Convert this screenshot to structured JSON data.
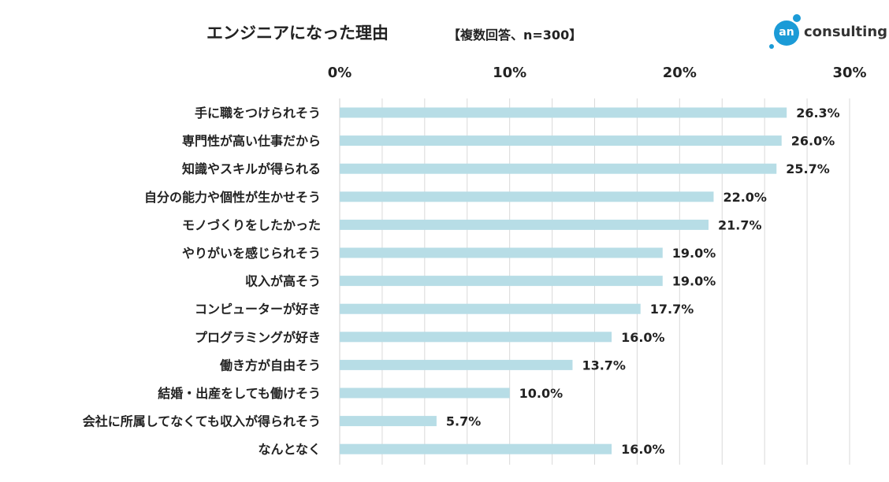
{
  "header": {
    "title": "エンジニアになった理由",
    "subtitle": "【複数回答、n=300】",
    "logo_mark": "an",
    "logo_text": "consulting"
  },
  "colors": {
    "bar": "#b7dde6",
    "grid": "#d9d9d9",
    "text": "#222222",
    "logo": "#1b9bd7"
  },
  "chart_data": {
    "type": "bar",
    "orientation": "horizontal",
    "title": "エンジニアになった理由",
    "subtitle": "【複数回答、n=300】",
    "xlabel": "",
    "ylabel": "",
    "xlim": [
      0,
      30
    ],
    "xticks": [
      0,
      10,
      20,
      30
    ],
    "xtick_labels": [
      "0%",
      "10%",
      "20%",
      "30%"
    ],
    "grid": true,
    "unit": "%",
    "categories": [
      "手に職をつけられそう",
      "専門性が高い仕事だから",
      "知識やスキルが得られる",
      "自分の能力や個性が生かせそう",
      "モノづくりをしたかった",
      "やりがいを感じられそう",
      "収入が高そう",
      "コンピューターが好き",
      "プログラミングが好き",
      "働き方が自由そう",
      "結婚・出産をしても働けそう",
      "会社に所属してなくても収入が得られそう",
      "なんとなく"
    ],
    "values": [
      26.3,
      26.0,
      25.7,
      22.0,
      21.7,
      19.0,
      19.0,
      17.7,
      16.0,
      13.7,
      10.0,
      5.7,
      16.0
    ],
    "value_labels": [
      "26.3%",
      "26.0%",
      "25.7%",
      "22.0%",
      "21.7%",
      "19.0%",
      "19.0%",
      "17.7%",
      "16.0%",
      "13.7%",
      "10.0%",
      "5.7%",
      "16.0%"
    ]
  }
}
